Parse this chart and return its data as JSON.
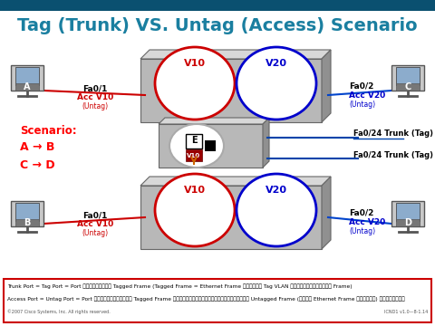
{
  "title": "Tag (Trunk) VS. Untag (Access) Scenario",
  "title_color": "#1a7fa0",
  "header_bar_color": "#0a5070",
  "bg_color": "#ffffff",
  "scenario_text": "Scenario:",
  "scenario_lines": [
    "A → B",
    "C → D"
  ],
  "footer_text1": "Trunk Port = Tag Port = Port ที่ส่งรับ Tagged Frame (Tagged Frame = Ethernet Frame ที่ถูก Tag VLAN เข้าไประหว่าง Frame)",
  "footer_text2": "Access Port = Untag Port = Port ที่ไม่ส่งรับ Tagged Frame แต่ส่งรับได้และส่งได้แต่ Untagged Frame (หรือ Ethernet Frame ธรรมดา) เท่านั้น",
  "cisco_text": "©2007 Cisco Systems, Inc. All rights reserved.",
  "slide_id": "ICND1 v1.0—8-1.14",
  "switch_face_color": "#b8b8b8",
  "switch_top_color": "#d8d8d8",
  "switch_right_color": "#909090",
  "vlan_red": "#cc0000",
  "vlan_blue": "#0000cc",
  "line_red": "#cc0000",
  "line_blue": "#0044cc",
  "trunk_line_color": "#0044aa"
}
